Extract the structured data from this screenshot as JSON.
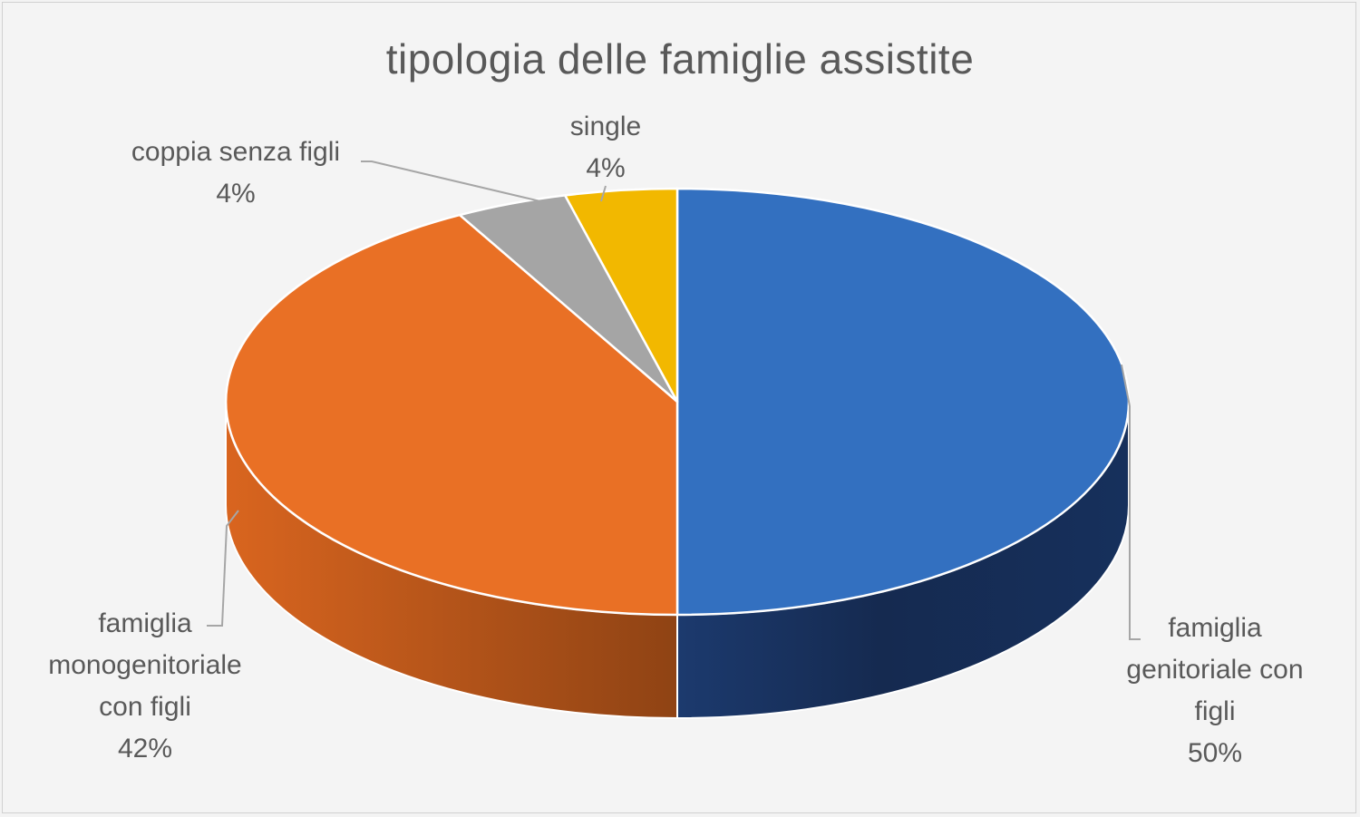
{
  "chart_data": {
    "type": "pie",
    "style": "3d",
    "title": "tipologia delle famiglie assistite",
    "slices": [
      {
        "label_lines": [
          "famiglia",
          "genitoriale con",
          "figli"
        ],
        "percent_label": "50%",
        "value": 50,
        "color": "#3370c0",
        "side_color": "#172f5c"
      },
      {
        "label_lines": [
          "famiglia",
          "monogenitoriale",
          "con figli"
        ],
        "percent_label": "42%",
        "value": 42,
        "color": "#e97025",
        "side_color": "#b45518"
      },
      {
        "label_lines": [
          "coppia senza figli"
        ],
        "percent_label": "4%",
        "value": 4,
        "color": "#a5a5a5",
        "side_color": "#7a7a7a"
      },
      {
        "label_lines": [
          "single"
        ],
        "percent_label": "4%",
        "value": 4,
        "color": "#f2b800",
        "side_color": "#b88a00"
      }
    ]
  }
}
